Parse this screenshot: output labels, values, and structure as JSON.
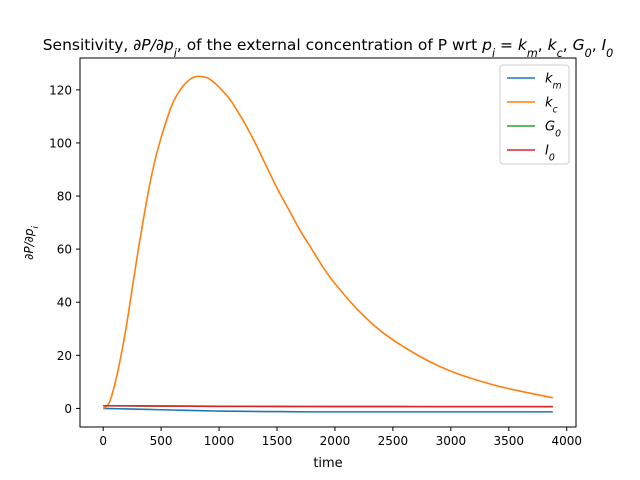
{
  "chart_data": {
    "type": "line",
    "title": "Sensitivity, ∂P/∂pᵢ, of the external concentration of P wrt pᵢ = k_m, k_c, G₀, I₀",
    "title_parts": {
      "prefix": "Sensitivity, ",
      "sym1": "∂P/∂p",
      "sym1_sub": "i",
      "middle": ", of the external concentration of P wrt ",
      "sym2": "p",
      "sym2_sub": "i",
      "equals": " = ",
      "params": [
        {
          "base": "k",
          "sub": "m"
        },
        {
          "base": "k",
          "sub": "c"
        },
        {
          "base": "G",
          "sub": "0"
        },
        {
          "base": "I",
          "sub": "0"
        }
      ]
    },
    "xlabel": "time",
    "ylabel": "∂P/∂pᵢ",
    "ylabel_parts": {
      "base": "∂P/∂p",
      "sub": "i"
    },
    "xlim": [
      -200,
      4080
    ],
    "ylim": [
      -7,
      132
    ],
    "xticks": [
      0,
      500,
      1000,
      1500,
      2000,
      2500,
      3000,
      3500,
      4000
    ],
    "yticks": [
      0,
      20,
      40,
      60,
      80,
      100,
      120
    ],
    "xtick_labels": [
      "0",
      "500",
      "1000",
      "1500",
      "2000",
      "2500",
      "3000",
      "3500",
      "4000"
    ],
    "ytick_labels": [
      "0",
      "20",
      "40",
      "60",
      "80",
      "100",
      "120"
    ],
    "grid": false,
    "legend_position": "top-right",
    "series": [
      {
        "name": "k_m",
        "legend": {
          "base": "k",
          "sub": "m"
        },
        "color": "#1f77b4",
        "x": [
          0,
          200,
          400,
          600,
          800,
          1000,
          1200,
          1500,
          1800,
          2200,
          2600,
          3000,
          3500,
          3880
        ],
        "y": [
          0,
          -0.2,
          -0.4,
          -0.6,
          -0.8,
          -1.0,
          -1.1,
          -1.2,
          -1.3,
          -1.3,
          -1.3,
          -1.3,
          -1.3,
          -1.3
        ]
      },
      {
        "name": "k_c",
        "legend": {
          "base": "k",
          "sub": "c"
        },
        "color": "#ff7f0e",
        "x": [
          0,
          50,
          100,
          150,
          200,
          250,
          300,
          350,
          400,
          450,
          500,
          550,
          600,
          650,
          700,
          750,
          800,
          850,
          900,
          950,
          1000,
          1100,
          1200,
          1300,
          1400,
          1500,
          1600,
          1700,
          1800,
          1900,
          2000,
          2200,
          2400,
          2600,
          2800,
          3000,
          3200,
          3400,
          3600,
          3880
        ],
        "y": [
          0,
          2,
          9,
          19,
          31,
          45,
          59,
          72,
          84,
          94,
          102,
          109,
          115,
          119,
          122,
          124,
          125,
          125,
          124.5,
          123,
          121,
          116,
          109,
          101,
          92,
          83,
          75,
          67,
          60,
          53,
          47,
          37,
          29,
          23,
          18,
          14,
          11,
          8.5,
          6.5,
          4
        ]
      },
      {
        "name": "G_0",
        "legend": {
          "base": "G",
          "sub": "0"
        },
        "color": "#2ca02c",
        "x": [
          0,
          500,
          1000,
          1500,
          2000,
          2500,
          3000,
          3500,
          3880
        ],
        "y": [
          1.0,
          0.9,
          0.8,
          0.75,
          0.7,
          0.7,
          0.65,
          0.65,
          0.65
        ]
      },
      {
        "name": "I_0",
        "legend": {
          "base": "I",
          "sub": "0"
        },
        "color": "#d62728",
        "x": [
          0,
          500,
          1000,
          1500,
          2000,
          2500,
          3000,
          3500,
          3880
        ],
        "y": [
          1.0,
          0.9,
          0.8,
          0.75,
          0.7,
          0.7,
          0.65,
          0.65,
          0.65
        ]
      }
    ]
  }
}
